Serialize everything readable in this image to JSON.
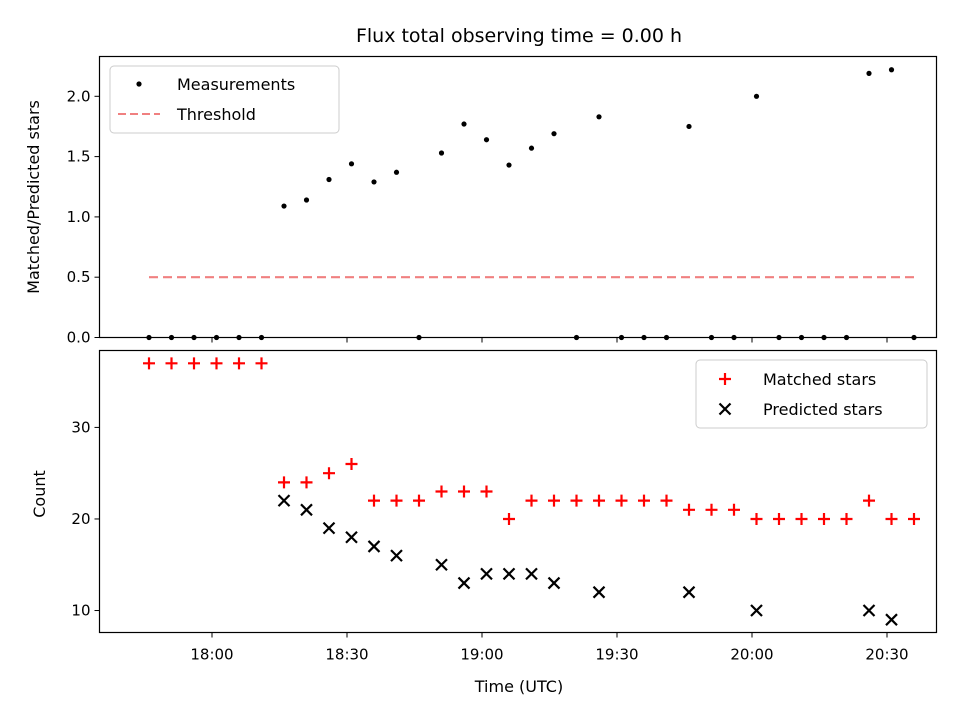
{
  "chart_data": [
    {
      "type": "scatter",
      "title": "Flux total observing time = 0.00 h",
      "xlabel": "",
      "ylabel": "Matched/Predicted stars",
      "xlim": [
        "17:35",
        "20:41"
      ],
      "ylim": [
        0,
        2.33
      ],
      "yticks": [
        "0.0",
        "0.5",
        "1.0",
        "1.5",
        "2.0"
      ],
      "grid": false,
      "legend_placement": "upper-left",
      "legend": [
        "Measurements",
        "Threshold"
      ],
      "series": [
        {
          "name": "Measurements",
          "color": "#000000",
          "marker": "dot",
          "x": [
            "17:46",
            "17:51",
            "17:56",
            "18:01",
            "18:06",
            "18:11",
            "18:16",
            "18:21",
            "18:26",
            "18:31",
            "18:36",
            "18:41",
            "18:46",
            "18:51",
            "18:56",
            "19:01",
            "19:06",
            "19:11",
            "19:16",
            "19:21",
            "19:26",
            "19:31",
            "19:36",
            "19:41",
            "19:46",
            "19:51",
            "19:56",
            "20:01",
            "20:06",
            "20:11",
            "20:16",
            "20:21",
            "20:26",
            "20:31",
            "20:36"
          ],
          "y": [
            0,
            0,
            0,
            0,
            0,
            0,
            1.09,
            1.14,
            1.31,
            1.44,
            1.29,
            1.37,
            0,
            1.53,
            1.77,
            1.64,
            1.43,
            1.57,
            1.69,
            0,
            1.83,
            0,
            0,
            0,
            1.75,
            0,
            0,
            2.0,
            0,
            0,
            0,
            0,
            2.19,
            2.22,
            0
          ]
        },
        {
          "name": "Threshold",
          "color": "#f08080",
          "line_style": "dashed",
          "x": [
            "17:46",
            "20:36"
          ],
          "y": [
            0.5,
            0.5
          ]
        }
      ]
    },
    {
      "type": "scatter",
      "title": "",
      "xlabel": "Time (UTC)",
      "ylabel": "Count",
      "xlim": [
        "17:35",
        "20:41"
      ],
      "ylim": [
        7.6,
        38.4
      ],
      "xticks": [
        "18:00",
        "18:30",
        "19:00",
        "19:30",
        "20:00",
        "20:30"
      ],
      "yticks": [
        "10",
        "20",
        "30"
      ],
      "grid": false,
      "legend_placement": "upper-right",
      "legend": [
        "Matched stars",
        "Predicted stars"
      ],
      "series": [
        {
          "name": "Matched stars",
          "color": "#ff0000",
          "marker": "plus",
          "x": [
            "17:46",
            "17:51",
            "17:56",
            "18:01",
            "18:06",
            "18:11",
            "18:16",
            "18:21",
            "18:26",
            "18:31",
            "18:36",
            "18:41",
            "18:46",
            "18:51",
            "18:56",
            "19:01",
            "19:06",
            "19:11",
            "19:16",
            "19:21",
            "19:26",
            "19:31",
            "19:36",
            "19:41",
            "19:46",
            "19:51",
            "19:56",
            "20:01",
            "20:06",
            "20:11",
            "20:16",
            "20:21",
            "20:26",
            "20:31",
            "20:36"
          ],
          "y": [
            37,
            37,
            37,
            37,
            37,
            37,
            24,
            24,
            25,
            26,
            22,
            22,
            22,
            23,
            23,
            23,
            20,
            22,
            22,
            22,
            22,
            22,
            22,
            22,
            21,
            21,
            21,
            20,
            20,
            20,
            20,
            20,
            22,
            20,
            20
          ]
        },
        {
          "name": "Predicted stars",
          "color": "#000000",
          "marker": "x",
          "x": [
            "18:16",
            "18:21",
            "18:26",
            "18:31",
            "18:36",
            "18:41",
            "18:51",
            "18:56",
            "19:01",
            "19:06",
            "19:11",
            "19:16",
            "19:26",
            "19:46",
            "20:01",
            "20:26",
            "20:31"
          ],
          "y": [
            22,
            21,
            19,
            18,
            17,
            16,
            15,
            13,
            14,
            14,
            14,
            13,
            12,
            12,
            10,
            10,
            9
          ]
        }
      ]
    }
  ]
}
